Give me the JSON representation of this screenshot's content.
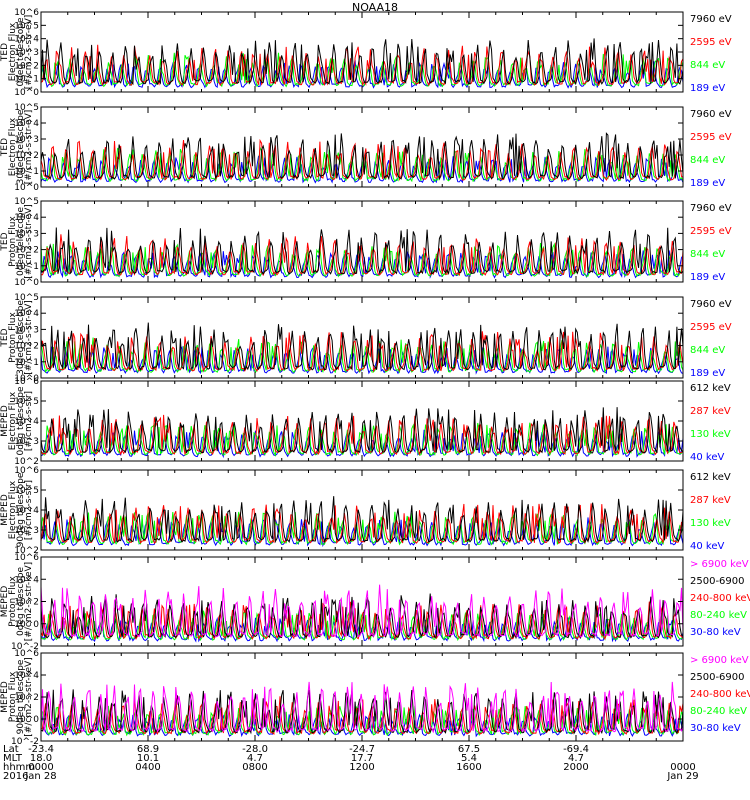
{
  "title": "NOAA18",
  "colors": {
    "black": "#000000",
    "red": "#ff0000",
    "green": "#00ff00",
    "blue": "#0000ff",
    "magenta": "#ff00ff"
  },
  "chart_data": [
    {
      "type": "line",
      "ylabel": [
        "TED",
        "Electron Flux",
        "0deg telescope",
        "[#/cm2-s-str-eV]"
      ],
      "ylog_min_exp": 0,
      "ylog_max_exp": 6,
      "tick_labels": [
        "10^0",
        "10^1",
        "10^2",
        "10^3",
        "10^4",
        "10^5",
        "10^6"
      ],
      "series": [
        {
          "name": "7960 eV",
          "color": "#000000"
        },
        {
          "name": "2595 eV",
          "color": "#ff0000"
        },
        {
          "name": "844 eV",
          "color": "#00ff00"
        },
        {
          "name": "189 eV",
          "color": "#0000ff"
        }
      ]
    },
    {
      "type": "line",
      "ylabel": [
        "TED",
        "Electron Flux",
        "30deg telescope",
        "[#/cm2-s-str-eV]"
      ],
      "ylog_min_exp": 0,
      "ylog_max_exp": 5,
      "tick_labels": [
        "10^0",
        "10^1",
        "10^2",
        "10^3",
        "10^4",
        "10^5"
      ],
      "series": [
        {
          "name": "7960 eV",
          "color": "#000000"
        },
        {
          "name": "2595 eV",
          "color": "#ff0000"
        },
        {
          "name": "844 eV",
          "color": "#00ff00"
        },
        {
          "name": "189 eV",
          "color": "#0000ff"
        }
      ]
    },
    {
      "type": "line",
      "ylabel": [
        "TED",
        "Proton Flux",
        "0deg telescope",
        "[#/cm2-s-str-eV]"
      ],
      "ylog_min_exp": 0,
      "ylog_max_exp": 5,
      "tick_labels": [
        "10^0",
        "10^1",
        "10^2",
        "10^3",
        "10^4",
        "10^5"
      ],
      "series": [
        {
          "name": "7960 eV",
          "color": "#000000"
        },
        {
          "name": "2595 eV",
          "color": "#ff0000"
        },
        {
          "name": "844 eV",
          "color": "#00ff00"
        },
        {
          "name": "189 eV",
          "color": "#0000ff"
        }
      ]
    },
    {
      "type": "line",
      "ylabel": [
        "TED",
        "Proton Flux",
        "30deg telescope",
        "[#/cm2-s-str-eV]"
      ],
      "ylog_min_exp": 0,
      "ylog_max_exp": 5,
      "tick_labels": [
        "10^0",
        "10^1",
        "10^2",
        "10^3",
        "10^4",
        "10^5"
      ],
      "series": [
        {
          "name": "7960 eV",
          "color": "#000000"
        },
        {
          "name": "2595 eV",
          "color": "#ff0000"
        },
        {
          "name": "844 eV",
          "color": "#00ff00"
        },
        {
          "name": "189 eV",
          "color": "#0000ff"
        }
      ]
    },
    {
      "type": "line",
      "ylabel": [
        "MEPED",
        "Electron Flux",
        "0deg telescope",
        "[#/cm2-s-str]"
      ],
      "ylog_min_exp": 2,
      "ylog_max_exp": 6,
      "tick_labels": [
        "10^2",
        "10^3",
        "10^4",
        "10^5",
        "10^6"
      ],
      "series": [
        {
          "name": "612 keV",
          "color": "#000000"
        },
        {
          "name": "287 keV",
          "color": "#ff0000"
        },
        {
          "name": "130 keV",
          "color": "#00ff00"
        },
        {
          "name": "40 keV",
          "color": "#0000ff"
        }
      ]
    },
    {
      "type": "line",
      "ylabel": [
        "MEPED",
        "Electron Flux",
        "90deg telescope",
        "[#/cm2-s-str]"
      ],
      "ylog_min_exp": 2,
      "ylog_max_exp": 6,
      "tick_labels": [
        "10^2",
        "10^3",
        "10^4",
        "10^5",
        "10^6"
      ],
      "series": [
        {
          "name": "612 keV",
          "color": "#000000"
        },
        {
          "name": "287 keV",
          "color": "#ff0000"
        },
        {
          "name": "130 keV",
          "color": "#00ff00"
        },
        {
          "name": "40 keV",
          "color": "#0000ff"
        }
      ]
    },
    {
      "type": "line",
      "ylabel": [
        "MEPED",
        "Proton Flux",
        "0deg telescope",
        "[#/cm2-s-str-keV]"
      ],
      "ylog_min_exp": -2,
      "ylog_max_exp": 6,
      "tick_labels": [
        "10^-2",
        "10^0",
        "10^2",
        "10^4",
        "10^6"
      ],
      "series": [
        {
          "name": "> 6900 keV",
          "color": "#ff00ff"
        },
        {
          "name": "2500-6900",
          "color": "#000000"
        },
        {
          "name": "240-800 keV",
          "color": "#ff0000"
        },
        {
          "name": "80-240 keV",
          "color": "#00ff00"
        },
        {
          "name": "30-80 keV",
          "color": "#0000ff"
        }
      ]
    },
    {
      "type": "line",
      "ylabel": [
        "MEPED",
        "Proton Flux",
        "90deg telescope",
        "[#/cm2-s-str-keV]"
      ],
      "ylog_min_exp": -2,
      "ylog_max_exp": 6,
      "tick_labels": [
        "10^-2",
        "10^0",
        "10^2",
        "10^4",
        "10^6"
      ],
      "series": [
        {
          "name": "> 6900 keV",
          "color": "#ff00ff"
        },
        {
          "name": "2500-6900",
          "color": "#000000"
        },
        {
          "name": "240-800 keV",
          "color": "#ff0000"
        },
        {
          "name": "80-240 keV",
          "color": "#00ff00"
        },
        {
          "name": "30-80 keV",
          "color": "#0000ff"
        }
      ]
    }
  ],
  "bottom_axis": {
    "row_labels": [
      "Lat",
      "MLT",
      "hhmm",
      "2016"
    ],
    "columns": [
      {
        "values": [
          "-23.4",
          "18.0",
          "0000",
          "Jan 28"
        ]
      },
      {
        "values": [
          "68.9",
          "10.1",
          "0400",
          ""
        ]
      },
      {
        "values": [
          "-28.0",
          "4.7",
          "0800",
          ""
        ]
      },
      {
        "values": [
          "-24.7",
          "17.7",
          "1200",
          ""
        ]
      },
      {
        "values": [
          "67.5",
          "5.4",
          "1600",
          ""
        ]
      },
      {
        "values": [
          "-69.4",
          "4.7",
          "2000",
          ""
        ]
      },
      {
        "values": [
          "",
          "",
          "0000",
          "Jan 29"
        ]
      }
    ]
  }
}
